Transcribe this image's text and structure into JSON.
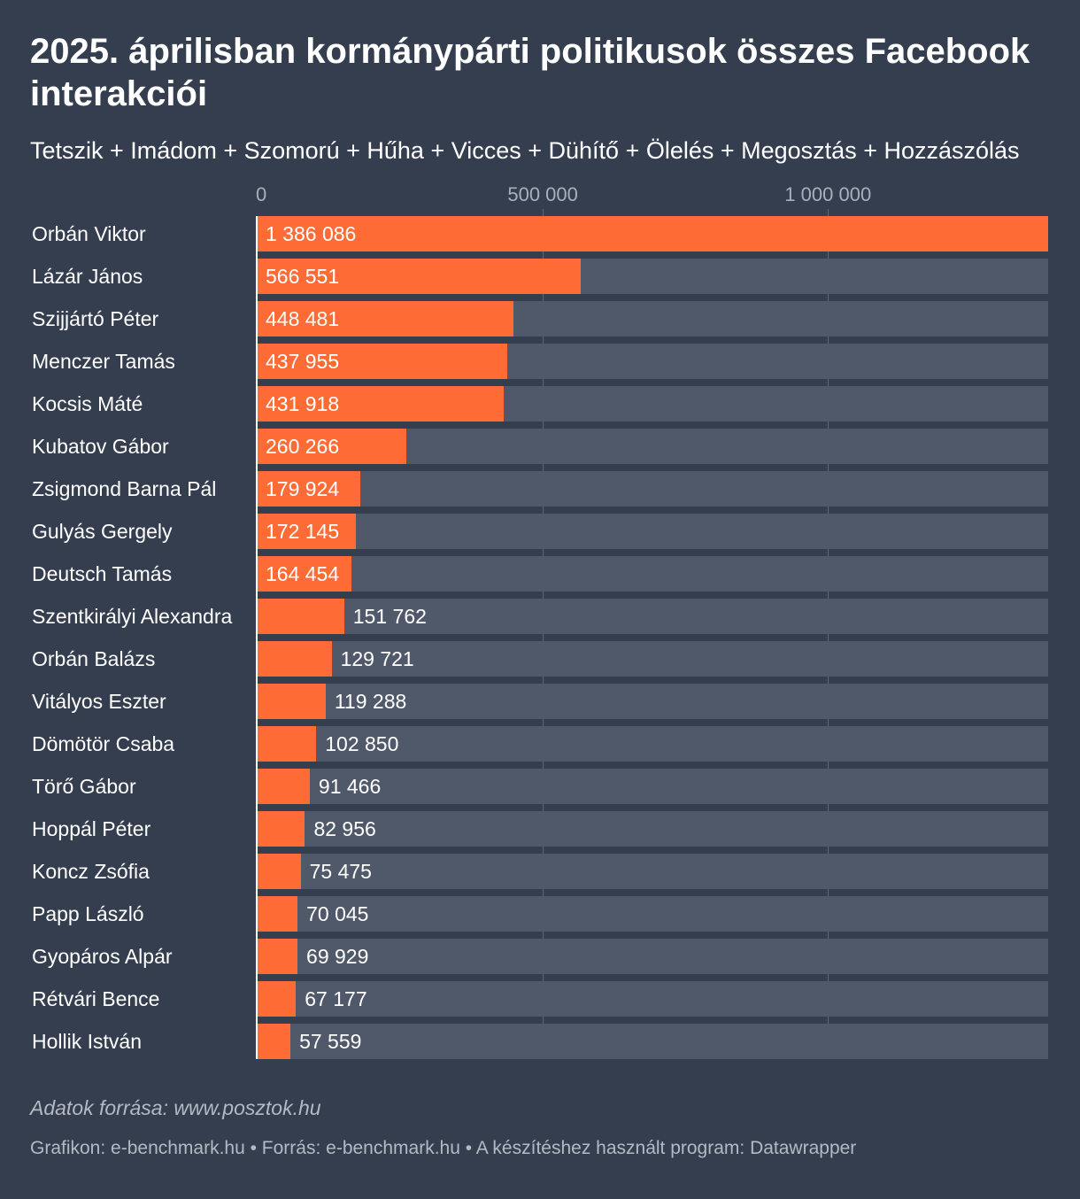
{
  "chart_data": {
    "type": "bar",
    "orientation": "horizontal",
    "title": "2025. áprilisban kormánypárti politikusok összes Facebook interakciói",
    "subtitle": "Tetszik + Imádom + Szomorú + Hűha + Vicces + Dühítő + Ölelés + Megosztás + Hozzászólás",
    "xlim": [
      0,
      1386086
    ],
    "ticks": [
      {
        "value": 0,
        "label": "0"
      },
      {
        "value": 500000,
        "label": "500 000"
      },
      {
        "value": 1000000,
        "label": "1 000 000"
      }
    ],
    "categories": [
      "Orbán Viktor",
      "Lázár János",
      "Szijjártó Péter",
      "Menczer Tamás",
      "Kocsis Máté",
      "Kubatov Gábor",
      "Zsigmond Barna Pál",
      "Gulyás Gergely",
      "Deutsch Tamás",
      "Szentkirályi Alexandra",
      "Orbán Balázs",
      "Vitályos Eszter",
      "Dömötör Csaba",
      "Törő Gábor",
      "Hoppál Péter",
      "Koncz Zsófia",
      "Papp László",
      "Gyopáros Alpár",
      "Rétvári Bence",
      "Hollik István"
    ],
    "values": [
      1386086,
      566551,
      448481,
      437955,
      431918,
      260266,
      179924,
      172145,
      164454,
      151762,
      129721,
      119288,
      102850,
      91466,
      82956,
      75475,
      70045,
      69929,
      67177,
      57559
    ],
    "value_labels": [
      "1 386 086",
      "566 551",
      "448 481",
      "437 955",
      "431 918",
      "260 266",
      "179 924",
      "172 145",
      "164 454",
      "151 762",
      "129 721",
      "119 288",
      "102 850",
      "91 466",
      "82 956",
      "75 475",
      "70 045",
      "69 929",
      "67 177",
      "57 559"
    ],
    "colors": {
      "bar": "#ff6b35",
      "track": "#4f5969",
      "background": "#343e4f"
    }
  },
  "source_note": "Adatok forrása: www.posztok.hu",
  "footer": "Grafikon: e-benchmark.hu • Forrás: e-benchmark.hu • A készítéshez használt program: Datawrapper"
}
